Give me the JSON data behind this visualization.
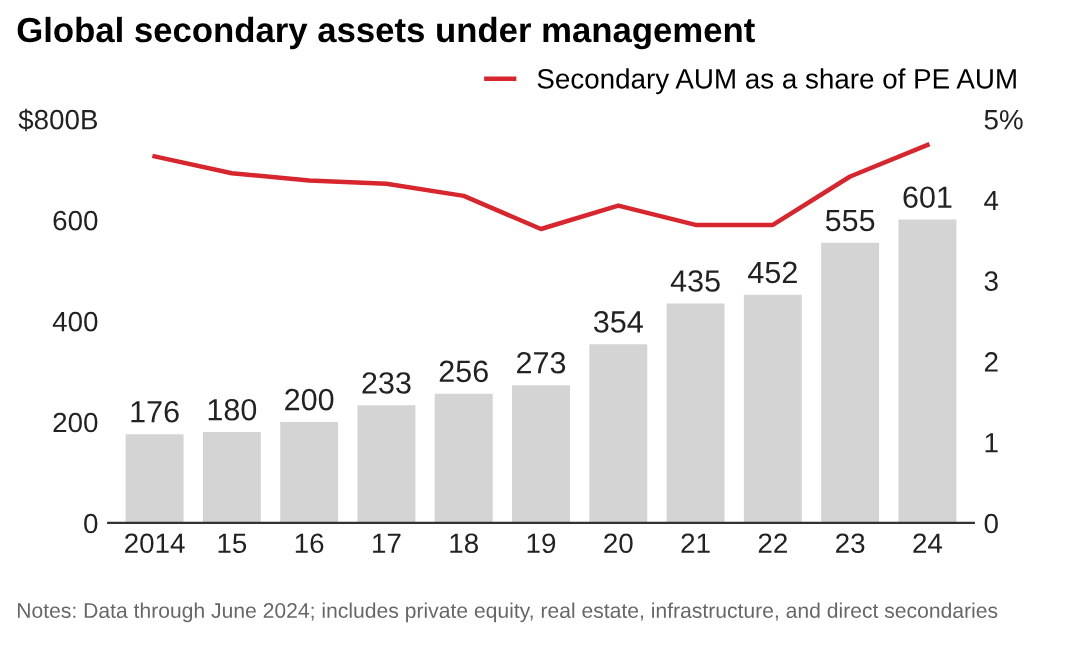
{
  "chart_data": {
    "type": "bar",
    "title": "Global secondary assets under management",
    "categories": [
      "2014",
      "15",
      "16",
      "17",
      "18",
      "19",
      "20",
      "21",
      "22",
      "23",
      "24"
    ],
    "series": [
      {
        "color": "#d4d4d4",
        "values": [
          176,
          180,
          200,
          233,
          256,
          273,
          354,
          435,
          452,
          555,
          601
        ],
        "data_labels": true
      },
      {
        "type": "line",
        "axis": "y2",
        "name": "Secondary AUM as a share of PE AUM",
        "color": "#d7262e",
        "values": [
          4.54,
          4.33,
          4.24,
          4.2,
          4.05,
          3.64,
          3.93,
          3.69,
          3.69,
          4.29,
          4.68
        ]
      }
    ],
    "ylim": [
      0,
      800
    ],
    "yticks": [
      0,
      200,
      400,
      600,
      {
        "value": 800,
        "label": "$800B"
      }
    ],
    "y2lim": [
      0,
      5
    ],
    "y2ticks": [
      0,
      1,
      2,
      3,
      4,
      {
        "value": 5,
        "label": "5%"
      }
    ],
    "legend": "top right",
    "grid": false,
    "marker": "none",
    "line_style": "solid",
    "annotations": [
      "Notes: Data through June 2024; includes private equity, real estate, infrastructure, and direct secondaries"
    ]
  }
}
